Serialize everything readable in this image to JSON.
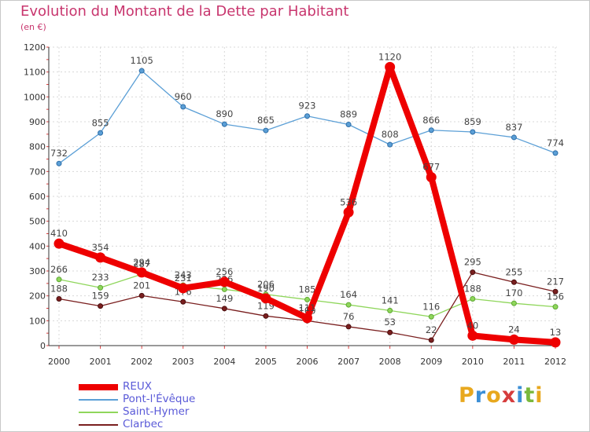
{
  "title": "Evolution du Montant de la Dette par Habitant",
  "subtitle": "(en €)",
  "logo": {
    "letters": [
      "P",
      "r",
      "o",
      "x",
      "i",
      "t",
      "i"
    ],
    "colors": [
      "#e8a81e",
      "#3c8fd6",
      "#e8a81e",
      "#d63c3c",
      "#3c8fd6",
      "#7ab83c",
      "#e8a81e"
    ]
  },
  "chart_data": {
    "type": "line",
    "title": "Evolution du Montant de la Dette par Habitant",
    "subtitle": "(en €)",
    "xlabel": "",
    "ylabel": "",
    "x": [
      "2000",
      "2001",
      "2002",
      "2003",
      "2004",
      "2005",
      "2006",
      "2007",
      "2008",
      "2009",
      "2010",
      "2011",
      "2012"
    ],
    "ylim": [
      0,
      1200
    ],
    "yticks": [
      0,
      100,
      200,
      300,
      400,
      500,
      600,
      700,
      800,
      900,
      1000,
      1100,
      1200
    ],
    "grid": true,
    "legend_position": "bottom-left",
    "series": [
      {
        "name": "Pont-l'Évêque",
        "color": "#5b9fd6",
        "values": [
          732,
          855,
          1105,
          960,
          890,
          865,
          923,
          889,
          808,
          866,
          859,
          837,
          774
        ]
      },
      {
        "name": "Saint-Hymer",
        "color": "#8fd65b",
        "values": [
          266,
          233,
          287,
          243,
          226,
          206,
          185,
          164,
          141,
          116,
          188,
          170,
          156
        ]
      },
      {
        "name": "Clarbec",
        "color": "#7a1f1f",
        "values": [
          188,
          159,
          201,
          176,
          149,
          119,
          100,
          76,
          53,
          22,
          295,
          255,
          217
        ]
      },
      {
        "name": "REUX",
        "color": "#ee0000",
        "values": [
          410,
          354,
          294,
          231,
          256,
          190,
          111,
          536,
          1120,
          677,
          40,
          24,
          13
        ]
      }
    ],
    "value_labels": {
      "Pont-l'Évêque": [
        "732",
        "855",
        "1105",
        "960",
        "890",
        "865",
        "923",
        "889",
        "808",
        "866",
        "859",
        "837",
        "774"
      ],
      "Saint-Hymer": [
        "266",
        "233",
        "287",
        "243",
        "226",
        "206",
        "185",
        "164",
        "141",
        "116",
        "188",
        "170",
        "156"
      ],
      "Clarbec": [
        "188",
        "159",
        "201",
        "176",
        "149",
        "119",
        "100",
        "76",
        "53",
        "22",
        "295",
        "255",
        "217"
      ],
      "REUX": [
        "410",
        "354",
        "294",
        "231",
        "256",
        "190",
        "111",
        "536",
        "1120",
        "677",
        "40",
        "24",
        "13"
      ]
    }
  },
  "legend": [
    {
      "name": "REUX",
      "color": "#ee0000",
      "thick": true
    },
    {
      "name": "Pont-l'Évêque",
      "color": "#5b9fd6",
      "thick": false
    },
    {
      "name": "Saint-Hymer",
      "color": "#8fd65b",
      "thick": false
    },
    {
      "name": "Clarbec",
      "color": "#7a1f1f",
      "thick": false
    }
  ]
}
